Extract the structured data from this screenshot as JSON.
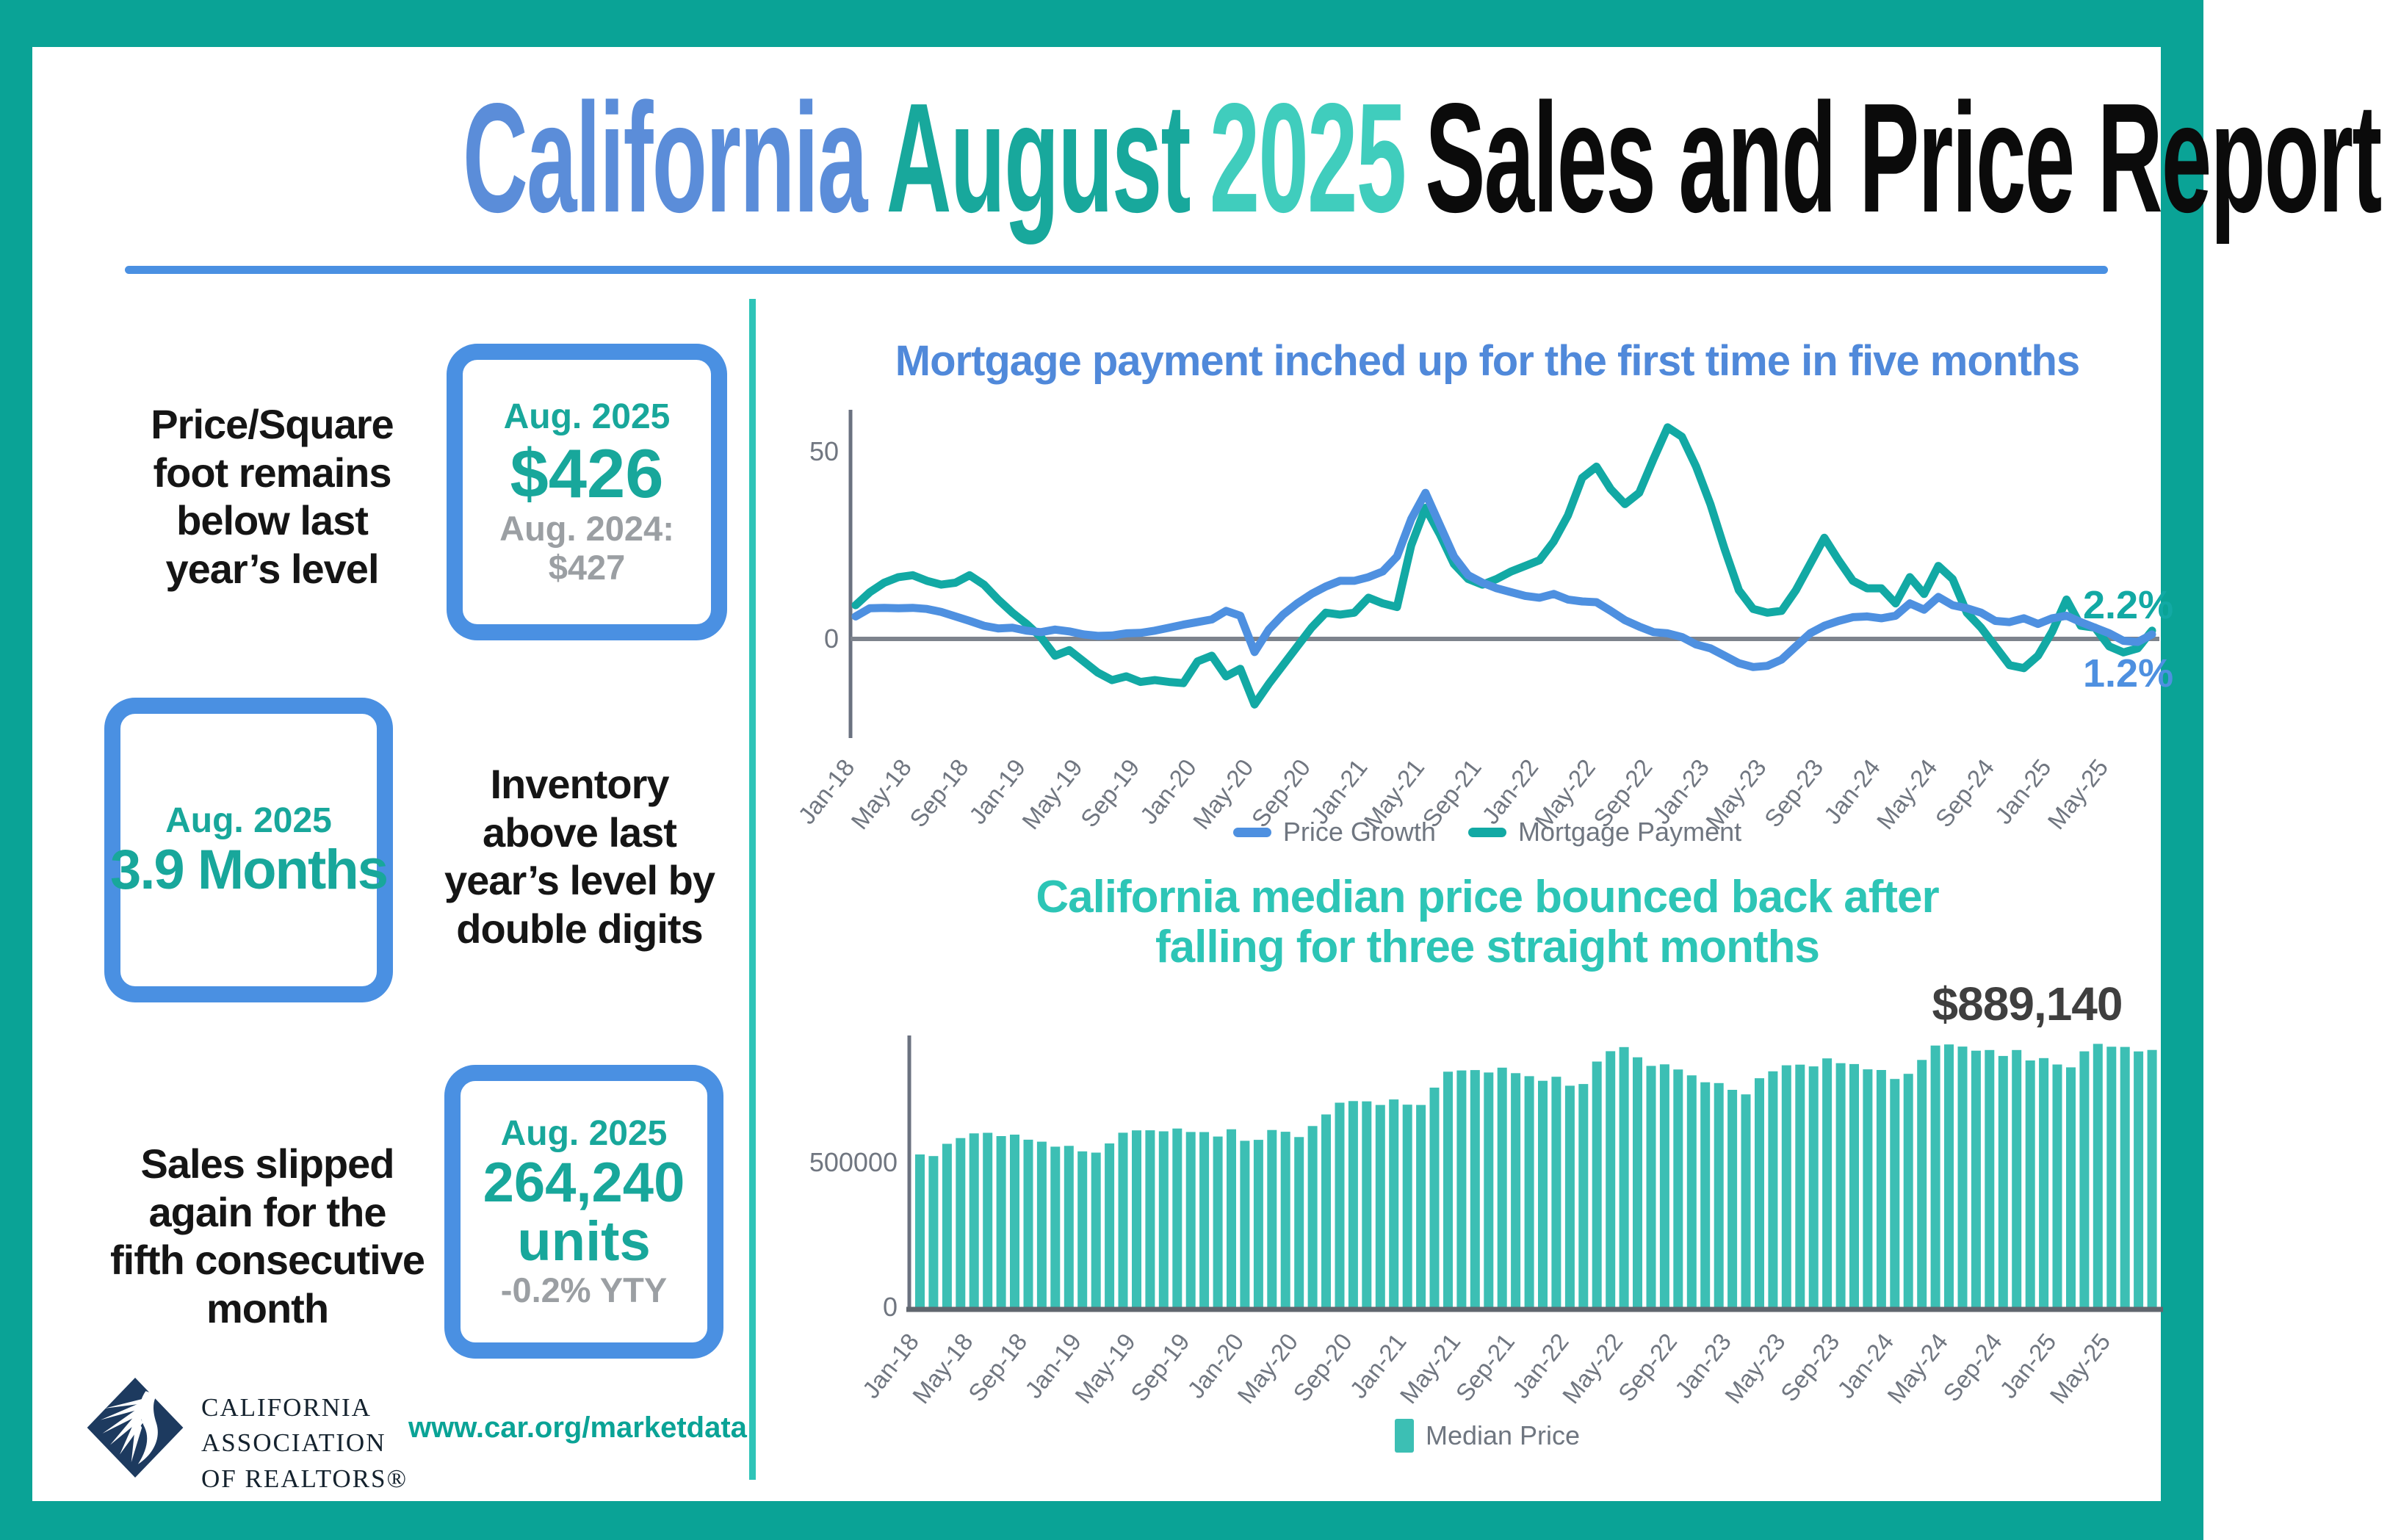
{
  "colors": {
    "frame_teal": "#0aa396",
    "divider_teal": "#2ec4b8",
    "accent_blue": "#4a90e2",
    "title_blue": "#5b8dd9",
    "title_teal_dark": "#18a89c",
    "title_teal_light": "#40cdbd",
    "chart_title_blue": "#5089da",
    "chart_title_teal": "#2dc5b6",
    "stat_teal": "#18a79b",
    "stat_gray": "#9b9fa3",
    "axis_gray": "#6b7280",
    "label_gray": "#707680",
    "annotation_dark": "#3f3f3f",
    "logo_navy": "#1d3a5f",
    "price_growth_blue": "#4e90e0",
    "mortgage_teal": "#12a9a4",
    "bar_teal": "#3cbfb4"
  },
  "header": {
    "word1": "California",
    "word2": "August",
    "word3": "2025",
    "word4": "Sales and Price Report"
  },
  "stats": {
    "price_per_sqft": {
      "headline_lines": [
        "Price/Square",
        "foot remains",
        "below last",
        "year’s level"
      ],
      "period": "Aug. 2025",
      "value": "$426",
      "secondary_label": "Aug. 2024:",
      "secondary_value": "$427"
    },
    "inventory": {
      "headline_lines": [
        "Inventory",
        "above last",
        "year’s level by",
        "double digits"
      ],
      "period": "Aug. 2025",
      "value": "3.9 Months"
    },
    "sales": {
      "headline_lines": [
        "Sales slipped",
        "again for the",
        "fifth consecutive",
        "month"
      ],
      "period": "Aug. 2025",
      "value": "264,240",
      "value_unit": "units",
      "secondary_value": "-0.2% YTY"
    }
  },
  "footer": {
    "logo_lines": [
      "CALIFORNIA",
      "ASSOCIATION",
      "OF REALTORS®"
    ],
    "url": "www.car.org/marketdata"
  },
  "chart_data": [
    {
      "type": "line",
      "title": "Mortgage payment inched up for the first time in five months",
      "x_start": "Jan-18",
      "x_end": "Aug-25",
      "tick_labels": [
        "Jan-18",
        "May-18",
        "Sep-18",
        "Jan-19",
        "May-19",
        "Sep-19",
        "Jan-20",
        "May-20",
        "Sep-20",
        "Jan-21",
        "May-21",
        "Sep-21",
        "Jan-22",
        "May-22",
        "Sep-22",
        "Jan-23",
        "May-23",
        "Sep-23",
        "Jan-24",
        "May-24",
        "Sep-24",
        "Jan-25",
        "May-25"
      ],
      "yticks": [
        0,
        50
      ],
      "ylim": [
        -25,
        62
      ],
      "grid": false,
      "legend_position": "bottom",
      "series": [
        {
          "name": "Price Growth",
          "color": "#4e90e0",
          "end_label": "1.2%",
          "values": [
            6.0,
            8.2,
            8.3,
            8.2,
            8.3,
            8.0,
            7.2,
            6.0,
            4.8,
            3.5,
            2.8,
            3.0,
            2.2,
            1.8,
            2.5,
            2.0,
            1.2,
            0.8,
            0.9,
            1.5,
            1.6,
            2.2,
            3.0,
            3.8,
            4.5,
            5.2,
            7.5,
            6.2,
            -3.5,
            2.5,
            6.5,
            9.5,
            12.0,
            14.0,
            15.5,
            15.5,
            16.5,
            18.0,
            22.0,
            32.0,
            39.0,
            30.5,
            22.0,
            17.0,
            15.0,
            13.5,
            12.5,
            11.5,
            11.0,
            12.0,
            10.5,
            10.0,
            9.8,
            7.5,
            5.0,
            3.3,
            1.8,
            1.5,
            0.5,
            -1.5,
            -2.5,
            -4.5,
            -6.5,
            -7.5,
            -7.2,
            -5.5,
            -2.0,
            1.5,
            3.5,
            4.8,
            5.8,
            6.0,
            5.5,
            6.2,
            9.5,
            7.8,
            11.2,
            9.0,
            8.2,
            7.0,
            4.8,
            4.5,
            5.5,
            4.0,
            5.5,
            6.2,
            4.5,
            3.0,
            1.5,
            -0.5,
            -0.8,
            1.2
          ]
        },
        {
          "name": "Mortgage Payment",
          "color": "#12a9a4",
          "end_label": "2.2%",
          "values": [
            9.0,
            12.5,
            15.0,
            16.5,
            17.0,
            15.5,
            14.5,
            15.0,
            17.0,
            14.5,
            10.5,
            7.0,
            4.0,
            0.5,
            -4.5,
            -3.0,
            -6.0,
            -9.0,
            -11.0,
            -10.0,
            -11.5,
            -11.0,
            -11.5,
            -11.8,
            -6.0,
            -4.5,
            -10.0,
            -8.0,
            -17.5,
            -12.0,
            -7.0,
            -2.0,
            3.0,
            7.0,
            6.5,
            7.0,
            11.0,
            9.5,
            8.5,
            25.0,
            35.0,
            28.0,
            20.0,
            16.0,
            14.5,
            16.0,
            18.0,
            19.5,
            21.0,
            26.0,
            33.0,
            43.0,
            46.0,
            40.0,
            36.0,
            39.0,
            48.0,
            56.5,
            54.0,
            46.0,
            36.0,
            24.0,
            13.0,
            8.0,
            7.0,
            7.5,
            13.0,
            20.0,
            27.0,
            21.0,
            15.5,
            13.5,
            13.5,
            9.5,
            16.5,
            12.0,
            19.5,
            16.0,
            7.0,
            3.0,
            -2.0,
            -7.0,
            -7.8,
            -4.5,
            2.0,
            10.5,
            3.5,
            3.0,
            -2.0,
            -3.6,
            -2.5,
            2.2
          ]
        }
      ]
    },
    {
      "type": "bar",
      "title_lines": [
        "California median price bounced back after",
        "falling for three straight months"
      ],
      "annotation": "$889,140",
      "legend": "Median Price",
      "bar_color": "#3cbfb4",
      "yticks": [
        0,
        500000
      ],
      "ylim": [
        0,
        950000
      ],
      "x_start": "Jan-18",
      "x_end": "Aug-25",
      "tick_labels": [
        "Jan-18",
        "May-18",
        "Sep-18",
        "Jan-19",
        "May-19",
        "Sep-19",
        "Jan-20",
        "May-20",
        "Sep-20",
        "Jan-21",
        "May-21",
        "Sep-21",
        "Jan-22",
        "May-22",
        "Sep-22",
        "Jan-23",
        "May-23",
        "Sep-23",
        "Jan-24",
        "May-24",
        "Sep-24",
        "Jan-25",
        "May-25"
      ],
      "values": [
        527800,
        522440,
        564830,
        584460,
        600860,
        602760,
        591460,
        596410,
        578850,
        572000,
        554760,
        557600,
        538690,
        534140,
        565880,
        602920,
        611190,
        611420,
        607990,
        617410,
        605680,
        605280,
        589770,
        615090,
        575160,
        578530,
        612440,
        606410,
        588070,
        626170,
        666320,
        706900,
        712430,
        711300,
        699000,
        717930,
        699890,
        699000,
        758990,
        813980,
        818260,
        819630,
        811170,
        827940,
        808890,
        798440,
        782480,
        796570,
        765580,
        771270,
        849080,
        884890,
        898980,
        863790,
        833910,
        839460,
        821680,
        801190,
        777500,
        774580,
        751330,
        735480,
        791490,
        815340,
        836110,
        838260,
        832340,
        859800,
        843340,
        840360,
        822200,
        819740,
        788940,
        806490,
        854490,
        904210,
        908040,
        900720,
        886560,
        888740,
        868150,
        888740,
        852880,
        861020,
        838850,
        829060,
        884350,
        910160,
        900170,
        899560,
        884050,
        889140
      ]
    }
  ]
}
